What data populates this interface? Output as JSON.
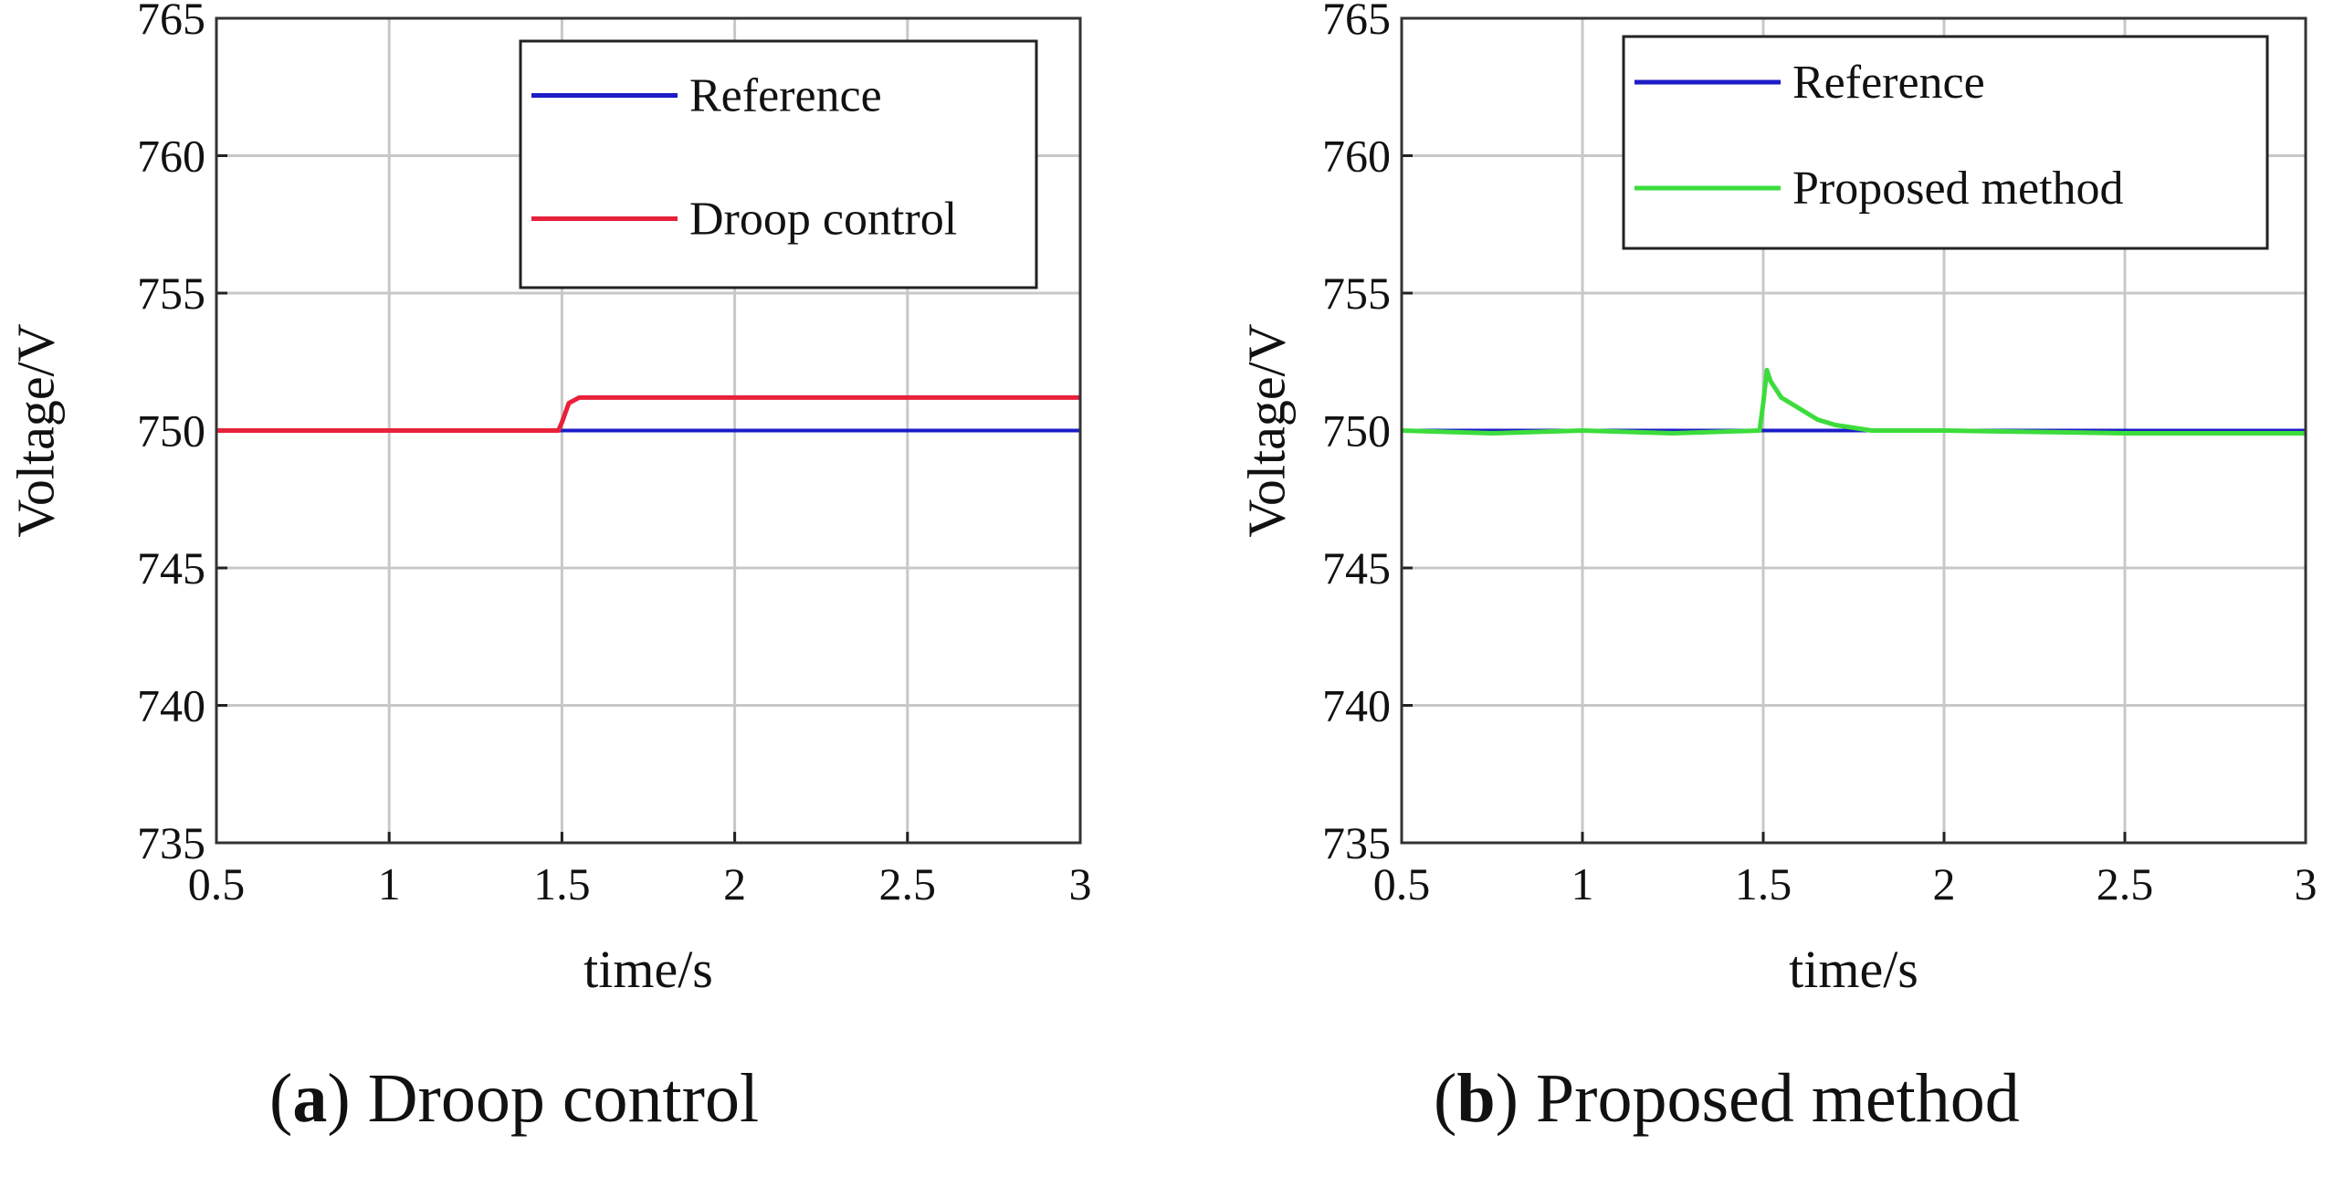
{
  "chart_data": [
    {
      "type": "line",
      "panel_letter": "a",
      "caption": "Droop control",
      "xlabel": "time/s",
      "ylabel": "Voltage/V",
      "xlim": [
        0.5,
        3
      ],
      "ylim": [
        735,
        765
      ],
      "xticks": [
        "0.5",
        "1",
        "1.5",
        "2",
        "2.5",
        "3"
      ],
      "yticks": [
        "735",
        "740",
        "745",
        "750",
        "755",
        "760",
        "765"
      ],
      "grid": true,
      "legend_position": "top-right",
      "series": [
        {
          "name": "Reference",
          "color": "#1c1cc8",
          "x": [
            0.5,
            3.0
          ],
          "y": [
            750.0,
            750.0
          ]
        },
        {
          "name": "Droop control",
          "color": "#e8213a",
          "x": [
            0.5,
            1.0,
            1.49,
            1.5,
            1.52,
            1.55,
            2.0,
            2.5,
            3.0
          ],
          "y": [
            750.0,
            750.0,
            750.0,
            750.3,
            751.0,
            751.2,
            751.2,
            751.2,
            751.2
          ]
        }
      ]
    },
    {
      "type": "line",
      "panel_letter": "b",
      "caption": "Proposed method",
      "xlabel": "time/s",
      "ylabel": "Voltage/V",
      "xlim": [
        0.5,
        3
      ],
      "ylim": [
        735,
        765
      ],
      "xticks": [
        "0.5",
        "1",
        "1.5",
        "2",
        "2.5",
        "3"
      ],
      "yticks": [
        "735",
        "740",
        "745",
        "750",
        "755",
        "760",
        "765"
      ],
      "grid": true,
      "legend_position": "top-right",
      "series": [
        {
          "name": "Reference",
          "color": "#1c1cc8",
          "x": [
            0.5,
            3.0
          ],
          "y": [
            750.0,
            750.0
          ]
        },
        {
          "name": "Proposed method",
          "color": "#3cdc3c",
          "x": [
            0.5,
            0.75,
            1.0,
            1.25,
            1.49,
            1.5,
            1.51,
            1.52,
            1.55,
            1.6,
            1.65,
            1.7,
            1.8,
            2.0,
            2.5,
            3.0
          ],
          "y": [
            750.0,
            749.9,
            750.0,
            749.9,
            750.0,
            751.0,
            752.2,
            751.8,
            751.2,
            750.8,
            750.4,
            750.2,
            750.0,
            750.0,
            749.9,
            749.9
          ]
        }
      ]
    }
  ]
}
